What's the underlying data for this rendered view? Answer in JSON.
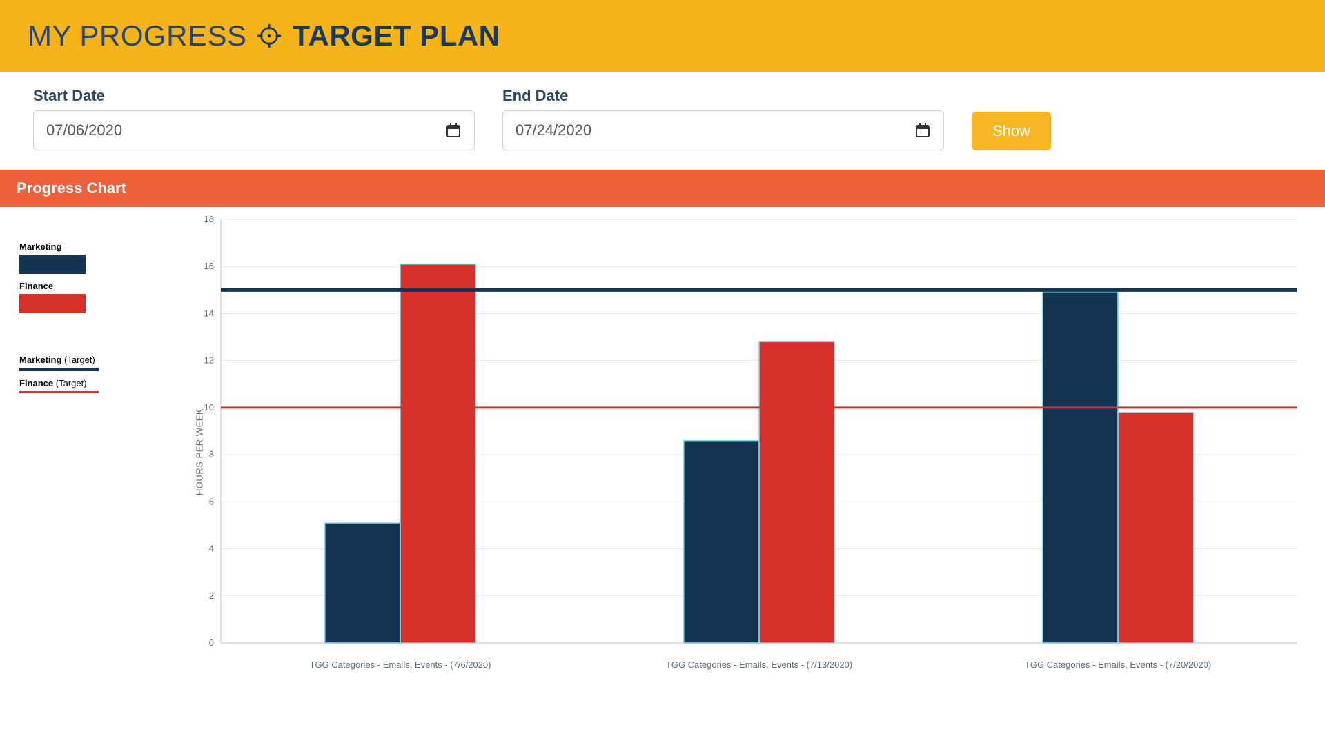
{
  "header": {
    "title_left": "MY PROGRESS",
    "title_right": "TARGET PLAN",
    "title_color": "#1b3a5a",
    "bar_bg": "#f4b41a"
  },
  "filters": {
    "start_label": "Start Date",
    "start_value": "07/06/2020",
    "end_label": "End Date",
    "end_value": "07/24/2020",
    "show_label": "Show",
    "show_bg": "#f7b725"
  },
  "chart_section": {
    "title": "Progress Chart",
    "title_bg": "#ed603b"
  },
  "chart": {
    "type": "bar-with-target-lines",
    "ylabel": "HOURS PER WEEK",
    "ylim": [
      0,
      18
    ],
    "ytick_step": 2,
    "yticks": [
      0,
      2,
      4,
      6,
      8,
      10,
      12,
      14,
      16,
      18
    ],
    "grid_color": "#e4e7ea",
    "axis_color": "#bfc5cb",
    "plot_bg": "#ffffff",
    "tick_fontsize": 13,
    "tick_color": "#5f6b77",
    "bar_outline_color": "#7fd9e6",
    "bar_width": 0.42,
    "categories": [
      "TGG Categories - Emails, Events - (7/6/2020)",
      "TGG Categories - Emails, Events - (7/13/2020)",
      "TGG Categories - Emails, Events - (7/20/2020)"
    ],
    "series": [
      {
        "name": "Marketing",
        "color": "#143552",
        "values": [
          5.1,
          8.6,
          14.9
        ]
      },
      {
        "name": "Finance",
        "color": "#d8302a",
        "values": [
          16.1,
          12.8,
          9.8
        ]
      }
    ],
    "target_lines": [
      {
        "name": "Marketing (Target)",
        "color": "#143552",
        "value": 15,
        "thickness": 5
      },
      {
        "name": "Finance (Target)",
        "color": "#d8302a",
        "value": 10,
        "thickness": 3
      }
    ],
    "legend": {
      "series_labels": [
        "Marketing",
        "Finance"
      ],
      "target_labels": [
        {
          "main": "Marketing",
          "sub": "(Target)"
        },
        {
          "main": "Finance",
          "sub": "(Target)"
        }
      ]
    }
  }
}
